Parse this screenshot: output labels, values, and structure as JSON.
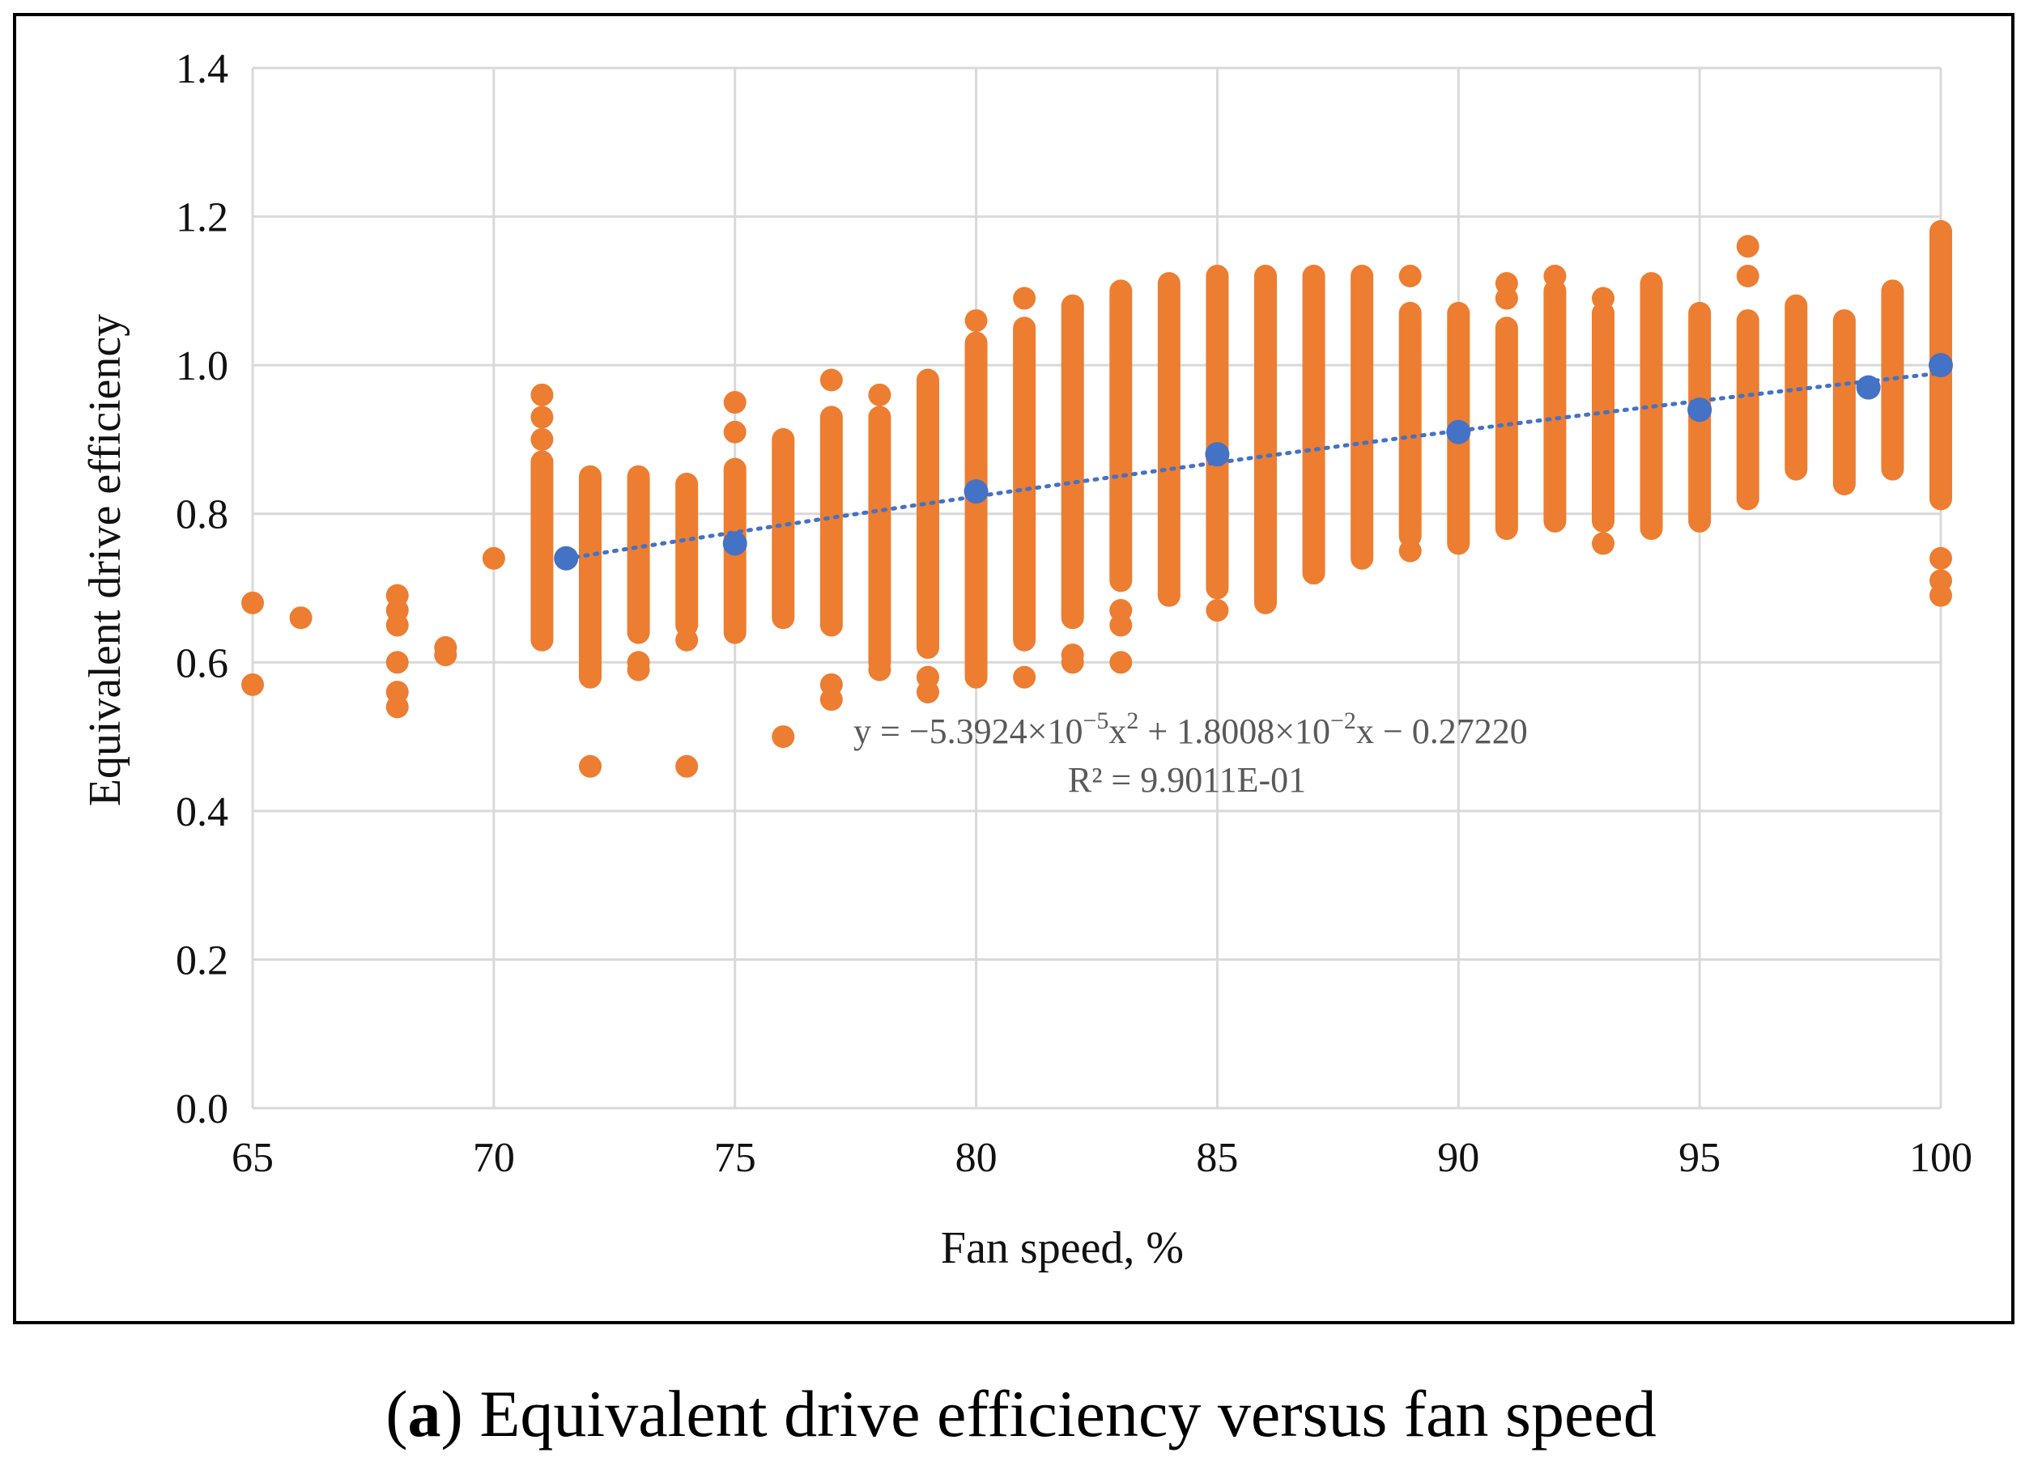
{
  "chart_data": {
    "type": "scatter",
    "title": "",
    "xlabel": "Fan speed, %",
    "ylabel": "Equivalent drive efficiency",
    "xlim": [
      65,
      100
    ],
    "ylim": [
      0,
      1.4
    ],
    "xticks": [
      65,
      70,
      75,
      80,
      85,
      90,
      95,
      100
    ],
    "yticks": [
      "0.0",
      "0.2",
      "0.4",
      "0.6",
      "0.8",
      "1.0",
      "1.2",
      "1.4"
    ],
    "grid": true,
    "colors": {
      "measured": "#ED7D31",
      "fitted": "#4472C4",
      "trend": "#4472C4",
      "grid": "#D9D9D9"
    },
    "measured_columns": [
      {
        "x": 71,
        "min": 0.63,
        "max": 0.87,
        "outliers": [
          0.96,
          0.93,
          0.9
        ]
      },
      {
        "x": 72,
        "min": 0.58,
        "max": 0.85,
        "outliers": [
          0.46
        ]
      },
      {
        "x": 73,
        "min": 0.64,
        "max": 0.85,
        "outliers": [
          0.6,
          0.59
        ]
      },
      {
        "x": 74,
        "min": 0.65,
        "max": 0.84,
        "outliers": [
          0.63,
          0.46
        ]
      },
      {
        "x": 75,
        "min": 0.64,
        "max": 0.86,
        "outliers": [
          0.95,
          0.91
        ]
      },
      {
        "x": 76,
        "min": 0.66,
        "max": 0.9,
        "outliers": [
          0.5
        ]
      },
      {
        "x": 77,
        "min": 0.65,
        "max": 0.93,
        "outliers": [
          0.98,
          0.57,
          0.55
        ]
      },
      {
        "x": 78,
        "min": 0.6,
        "max": 0.93,
        "outliers": [
          0.96,
          0.59
        ]
      },
      {
        "x": 79,
        "min": 0.62,
        "max": 0.98,
        "outliers": [
          0.58,
          0.56
        ]
      },
      {
        "x": 80,
        "min": 0.58,
        "max": 1.03,
        "outliers": [
          1.06
        ]
      },
      {
        "x": 81,
        "min": 0.63,
        "max": 1.05,
        "outliers": [
          1.09,
          0.58
        ]
      },
      {
        "x": 82,
        "min": 0.66,
        "max": 1.08,
        "outliers": [
          0.61,
          0.6
        ]
      },
      {
        "x": 83,
        "min": 0.71,
        "max": 1.1,
        "outliers": [
          0.67,
          0.65,
          0.6
        ]
      },
      {
        "x": 84,
        "min": 0.69,
        "max": 1.11,
        "outliers": []
      },
      {
        "x": 85,
        "min": 0.7,
        "max": 1.12,
        "outliers": [
          0.67
        ]
      },
      {
        "x": 86,
        "min": 0.68,
        "max": 1.12,
        "outliers": []
      },
      {
        "x": 87,
        "min": 0.72,
        "max": 1.12,
        "outliers": []
      },
      {
        "x": 88,
        "min": 0.74,
        "max": 1.12,
        "outliers": []
      },
      {
        "x": 89,
        "min": 0.77,
        "max": 1.07,
        "outliers": [
          1.12,
          0.75
        ]
      },
      {
        "x": 90,
        "min": 0.76,
        "max": 1.07,
        "outliers": []
      },
      {
        "x": 91,
        "min": 0.78,
        "max": 1.05,
        "outliers": [
          1.11,
          1.09
        ]
      },
      {
        "x": 92,
        "min": 0.79,
        "max": 1.1,
        "outliers": [
          1.12
        ]
      },
      {
        "x": 93,
        "min": 0.79,
        "max": 1.07,
        "outliers": [
          1.09,
          0.76
        ]
      },
      {
        "x": 94,
        "min": 0.78,
        "max": 1.11,
        "outliers": []
      },
      {
        "x": 95,
        "min": 0.79,
        "max": 1.07,
        "outliers": []
      },
      {
        "x": 96,
        "min": 0.82,
        "max": 1.06,
        "outliers": [
          1.16,
          1.12
        ]
      },
      {
        "x": 97,
        "min": 0.86,
        "max": 1.08,
        "outliers": []
      },
      {
        "x": 98,
        "min": 0.84,
        "max": 1.06,
        "outliers": []
      },
      {
        "x": 99,
        "min": 0.86,
        "max": 1.1,
        "outliers": []
      },
      {
        "x": 100,
        "min": 0.82,
        "max": 1.18,
        "outliers": [
          0.74,
          0.71,
          0.69
        ]
      }
    ],
    "measured_points": [
      {
        "x": 65,
        "y": 0.68
      },
      {
        "x": 65,
        "y": 0.57
      },
      {
        "x": 66,
        "y": 0.66
      },
      {
        "x": 68,
        "y": 0.69
      },
      {
        "x": 68,
        "y": 0.67
      },
      {
        "x": 68,
        "y": 0.65
      },
      {
        "x": 68,
        "y": 0.6
      },
      {
        "x": 68,
        "y": 0.56
      },
      {
        "x": 68,
        "y": 0.54
      },
      {
        "x": 69,
        "y": 0.62
      },
      {
        "x": 69,
        "y": 0.61
      },
      {
        "x": 70,
        "y": 0.74
      }
    ],
    "fitted_points": [
      {
        "x": 71.5,
        "y": 0.74
      },
      {
        "x": 75,
        "y": 0.76
      },
      {
        "x": 80,
        "y": 0.83
      },
      {
        "x": 85,
        "y": 0.88
      },
      {
        "x": 90,
        "y": 0.91
      },
      {
        "x": 95,
        "y": 0.94
      },
      {
        "x": 98.5,
        "y": 0.97
      },
      {
        "x": 100,
        "y": 1.0
      }
    ],
    "trendline": {
      "a": -5.3924e-05,
      "b": 0.018008,
      "c": -0.2722,
      "x_from": 71.5,
      "x_to": 100,
      "equation_parts": {
        "lead": "y = −5.3924×10",
        "exp1": "−5",
        "mid": "x",
        "sq": "2",
        "mid2": " + 1.8008×10",
        "exp2": "−2",
        "tail": "x − 0.27220"
      },
      "r2_label": "R² = 9.9011E-01"
    }
  },
  "caption": {
    "label": "a",
    "text": " Equivalent drive efficiency versus fan speed"
  }
}
